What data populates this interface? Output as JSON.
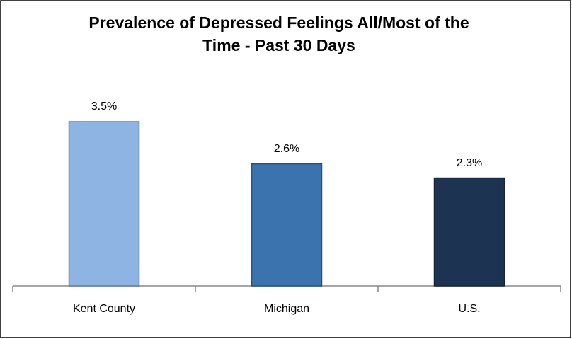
{
  "chart_data": {
    "type": "bar",
    "title": "Prevalence of Depressed Feelings All/Most of the Time - Past 30 Days",
    "categories": [
      "Kent County",
      "Michigan",
      "U.S."
    ],
    "values": [
      3.5,
      2.6,
      2.3
    ],
    "value_labels": [
      "3.5%",
      "2.6%",
      "2.3%"
    ],
    "colors": [
      "#8db4e2",
      "#3b73ae",
      "#1c3452"
    ]
  }
}
